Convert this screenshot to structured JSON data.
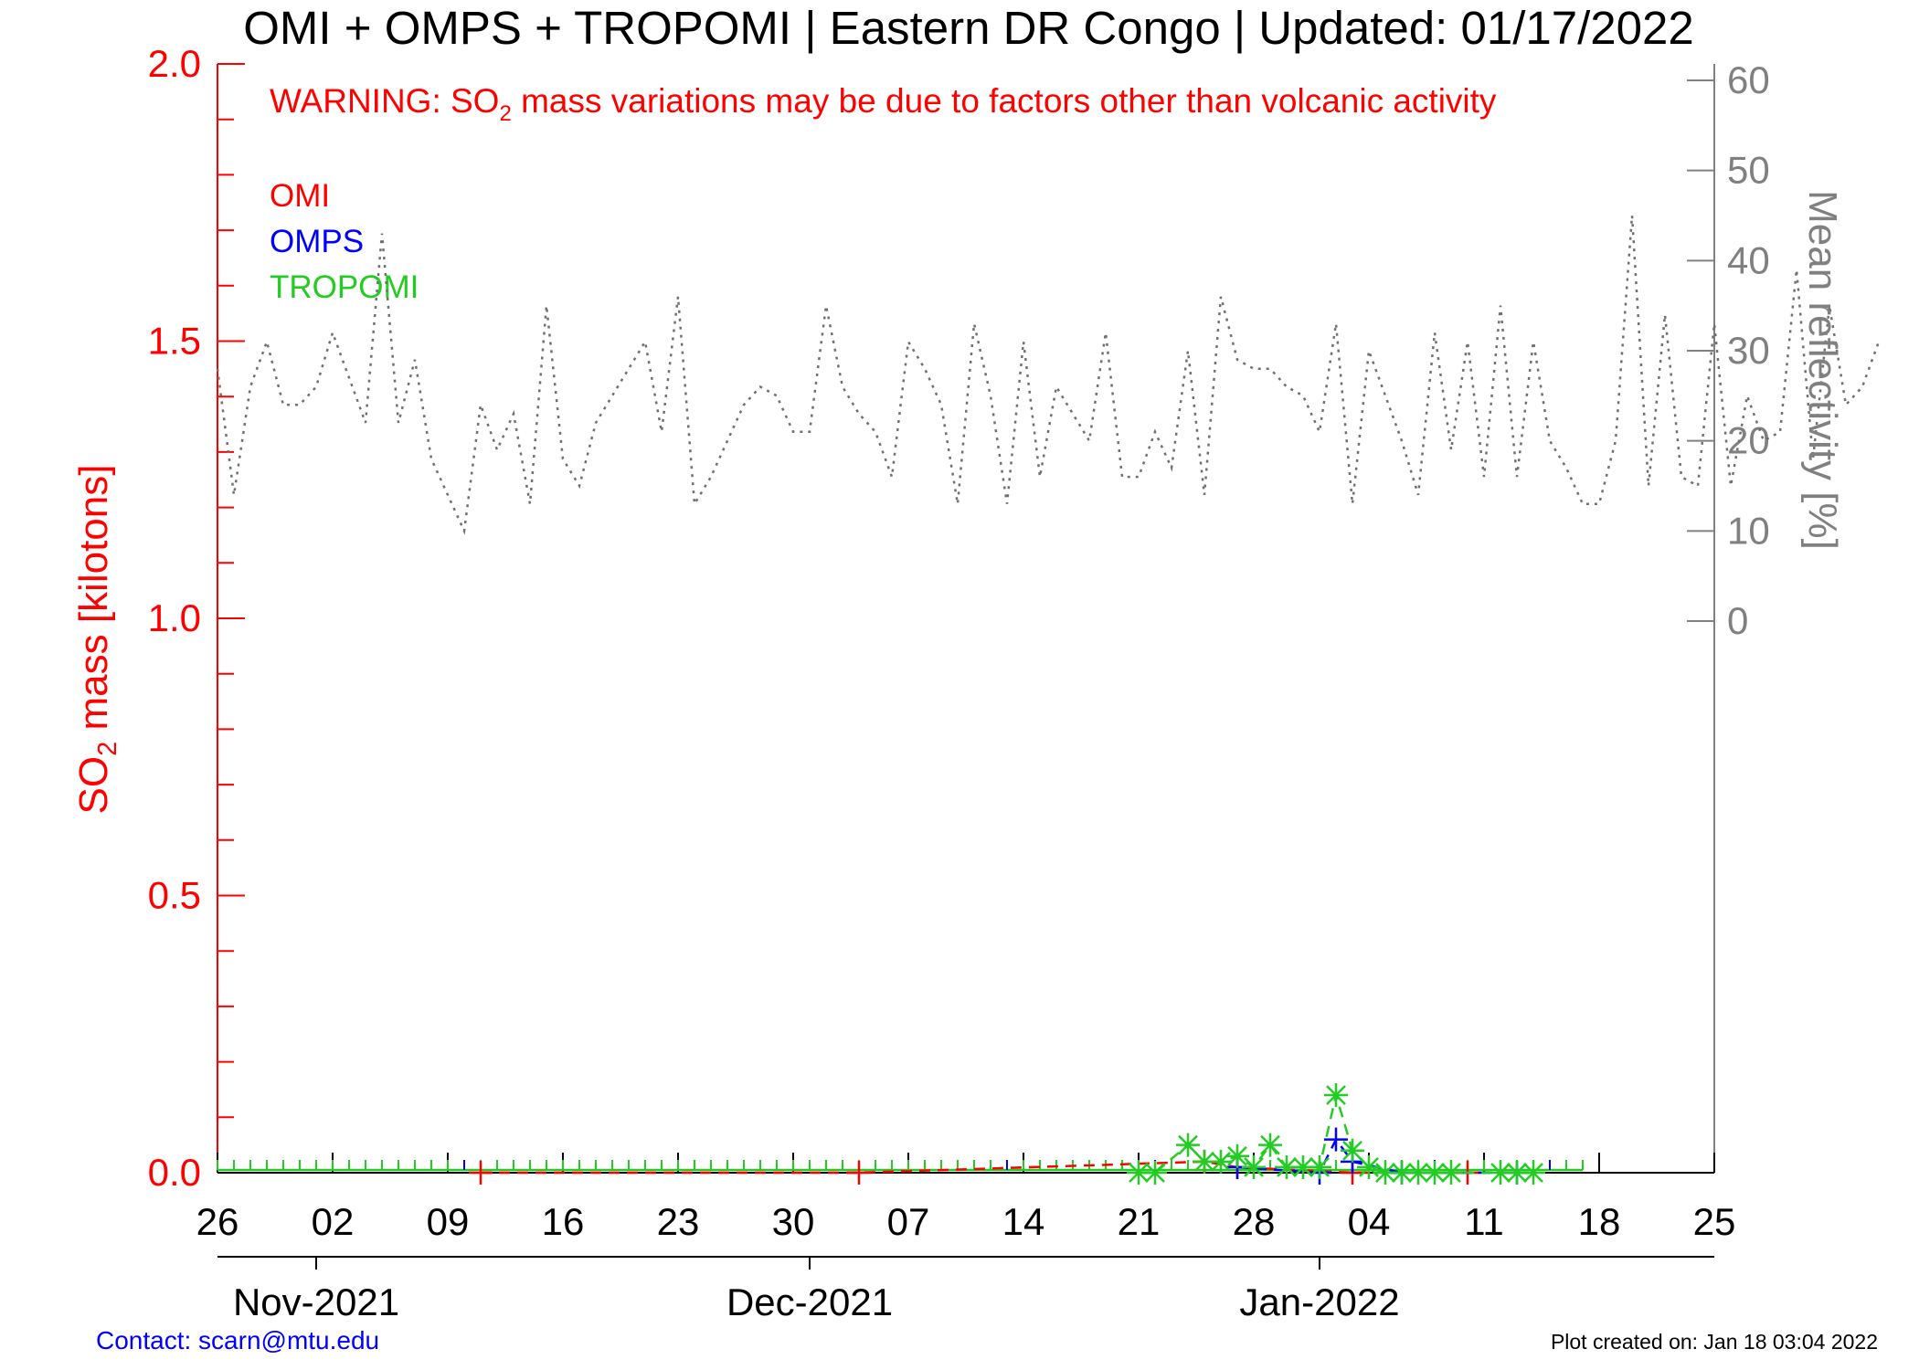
{
  "chart_data": {
    "type": "line",
    "title": "OMI + OMPS + TROPOMI | Eastern DR Congo | Updated: 01/17/2022",
    "warning": {
      "prefix": "WARNING: SO",
      "subscript": "2",
      "suffix": " mass variations may be due to factors other than volcanic activity"
    },
    "ylabel": {
      "prefix": "SO",
      "subscript": "2",
      "suffix": " mass [kilotons]"
    },
    "y2label": "Mean reflectivity [%]",
    "ylim": [
      0,
      2.0
    ],
    "y_ticks": [
      "0.0",
      "0.5",
      "1.0",
      "1.5",
      "2.0"
    ],
    "y2_ticks": [
      "0",
      "10",
      "20",
      "30",
      "40",
      "50",
      "60"
    ],
    "y2_range": [
      0,
      60
    ],
    "x_start": "2021-10-26",
    "x_end": "2022-01-25",
    "x_tick_labels": [
      "26",
      "02",
      "09",
      "16",
      "23",
      "30",
      "07",
      "14",
      "21",
      "28",
      "04",
      "11",
      "18",
      "25"
    ],
    "month_labels": [
      "Nov-2021",
      "Dec-2021",
      "Jan-2022"
    ],
    "legend": [
      {
        "name": "OMI",
        "color": "#ff0000"
      },
      {
        "name": "OMPS",
        "color": "#0000ff"
      },
      {
        "name": "TROPOMI",
        "color": "#22cc22"
      }
    ],
    "colors": {
      "axis_left": "#ff0000",
      "axis_right": "#808080",
      "reflectivity": "#707070"
    },
    "series": [
      {
        "name": "OMI",
        "points": [
          [
            "2021-11-11",
            0.0
          ],
          [
            "2021-12-04",
            0.0
          ],
          [
            "2021-12-25",
            0.02
          ],
          [
            "2021-12-27",
            0.01
          ],
          [
            "2022-01-03",
            0.0
          ],
          [
            "2022-01-10",
            0.0
          ]
        ]
      },
      {
        "name": "OMPS",
        "points": [
          [
            "2021-12-27",
            0.01
          ],
          [
            "2022-01-01",
            0.0
          ],
          [
            "2022-01-02",
            0.06
          ],
          [
            "2022-01-03",
            0.02
          ],
          [
            "2022-01-06",
            0.0
          ],
          [
            "2022-01-13",
            0.0
          ]
        ]
      },
      {
        "name": "TROPOMI",
        "points": [
          [
            "2021-12-21",
            0.0
          ],
          [
            "2021-12-22",
            0.0
          ],
          [
            "2021-12-24",
            0.05
          ],
          [
            "2021-12-25",
            0.02
          ],
          [
            "2021-12-26",
            0.02
          ],
          [
            "2021-12-27",
            0.03
          ],
          [
            "2021-12-28",
            0.01
          ],
          [
            "2021-12-29",
            0.05
          ],
          [
            "2021-12-30",
            0.01
          ],
          [
            "2021-12-31",
            0.01
          ],
          [
            "2022-01-01",
            0.01
          ],
          [
            "2022-01-02",
            0.14
          ],
          [
            "2022-01-03",
            0.04
          ],
          [
            "2022-01-04",
            0.01
          ],
          [
            "2022-01-05",
            0.0
          ],
          [
            "2022-01-06",
            0.0
          ],
          [
            "2022-01-07",
            0.0
          ],
          [
            "2022-01-08",
            0.0
          ],
          [
            "2022-01-09",
            0.0
          ],
          [
            "2022-01-12",
            0.0
          ],
          [
            "2022-01-13",
            0.0
          ],
          [
            "2022-01-14",
            0.0
          ]
        ]
      }
    ],
    "reflectivity": {
      "name": "Mean reflectivity",
      "values": [
        28,
        14,
        26,
        31,
        24,
        24,
        26,
        32,
        27,
        22,
        43,
        22,
        29,
        18,
        14,
        10,
        24,
        19,
        23,
        13,
        35,
        18,
        15,
        22,
        25,
        28,
        31,
        21,
        36,
        13,
        16,
        20,
        24,
        26,
        25,
        21,
        21,
        35,
        26,
        23,
        21,
        16,
        31,
        28,
        24,
        13,
        33,
        25,
        13,
        31,
        16,
        26,
        23,
        20,
        32,
        16,
        16,
        21,
        17,
        30,
        14,
        36,
        29,
        28,
        28,
        26,
        25,
        21,
        33,
        13,
        30,
        25,
        20,
        14,
        32,
        19,
        31,
        16,
        35,
        16,
        31,
        20,
        17,
        13,
        13,
        20,
        45,
        15,
        34,
        16,
        15,
        33,
        15,
        25,
        20,
        21,
        39,
        18,
        35,
        24,
        26,
        31
      ]
    }
  },
  "footer": {
    "contact": "Contact: scarn@mtu.edu",
    "plot_created": "Plot created on: Jan 18 03:04 2022"
  }
}
